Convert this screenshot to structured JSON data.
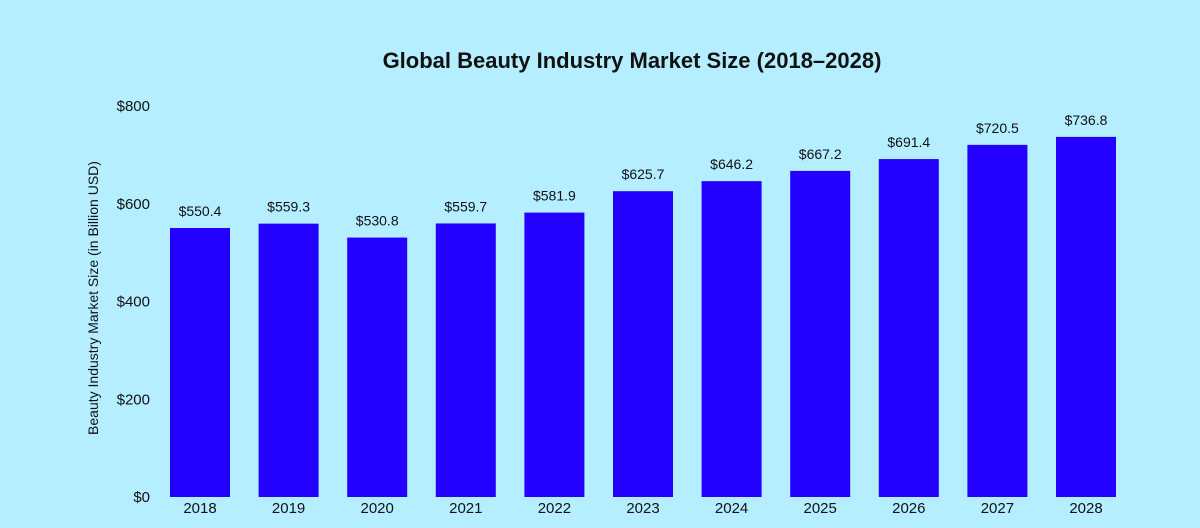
{
  "chart_data": {
    "type": "bar",
    "title": "Global Beauty Industry Market Size (2018–2028)",
    "xlabel": "",
    "ylabel": "Beauty Industry Market Size (in Billion USD)",
    "categories": [
      "2018",
      "2019",
      "2020",
      "2021",
      "2022",
      "2023",
      "2024",
      "2025",
      "2026",
      "2027",
      "2028"
    ],
    "values": [
      550.4,
      559.3,
      530.8,
      559.7,
      581.9,
      625.7,
      646.2,
      667.2,
      691.4,
      720.5,
      736.8
    ],
    "data_labels": [
      "$550.4",
      "$559.3",
      "$530.8",
      "$559.7",
      "$581.9",
      "$625.7",
      "$646.2",
      "$667.2",
      "$691.4",
      "$720.5",
      "$736.8"
    ],
    "ylim": [
      0,
      800
    ],
    "yticks": [
      0,
      200,
      400,
      600,
      800
    ],
    "ytick_labels": [
      "$0",
      "$200",
      "$400",
      "$600",
      "$800"
    ],
    "grid": false,
    "legend": "none",
    "colors": {
      "background": "#b5efff",
      "bar": "#2400ff",
      "text": "#111111"
    }
  }
}
